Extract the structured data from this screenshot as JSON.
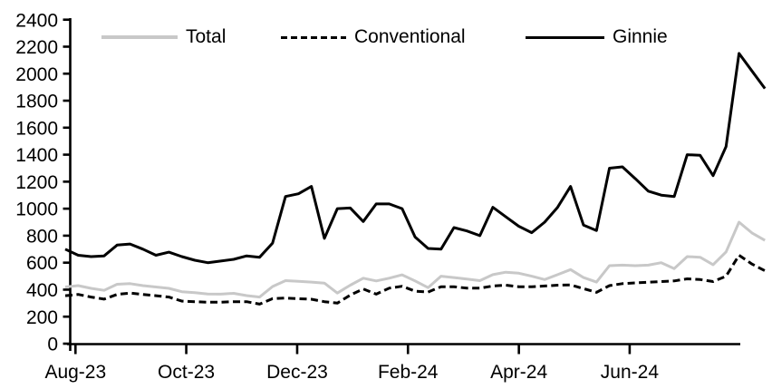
{
  "chart_data": {
    "type": "line",
    "title": "",
    "xlabel": "",
    "ylabel": "",
    "ylim": [
      0,
      2400
    ],
    "y_tick_step": 200,
    "y_tick_labels": [
      "0",
      "200",
      "400",
      "600",
      "800",
      "1000",
      "1200",
      "1400",
      "1600",
      "1800",
      "2000",
      "2200",
      "2400"
    ],
    "x_tick_labels": [
      "Aug-23",
      "Oct-23",
      "Dec-23",
      "Feb-24",
      "Apr-24",
      "Jun-24"
    ],
    "x_tick_index_positions": [
      0.79,
      9.34,
      17.9,
      26.45,
      35.01,
      43.56
    ],
    "n_points": 55,
    "x_unit": "weekly observations, Aug-2023 through Aug-2024",
    "grid": false,
    "legend_position": "top",
    "series": [
      {
        "name": "Total",
        "color": "#c8c8c8",
        "dash": "solid",
        "values": [
          420,
          430,
          410,
          395,
          440,
          445,
          430,
          420,
          410,
          385,
          378,
          368,
          367,
          373,
          356,
          345,
          423,
          467,
          462,
          456,
          449,
          375,
          433,
          485,
          465,
          485,
          510,
          465,
          415,
          500,
          490,
          478,
          467,
          511,
          529,
          522,
          500,
          475,
          511,
          549,
          490,
          456,
          578,
          582,
          578,
          582,
          600,
          556,
          645,
          640,
          585,
          680,
          900,
          820,
          765
        ]
      },
      {
        "name": "Conventional",
        "color": "#000000",
        "dash": "dashed",
        "values": [
          355,
          365,
          345,
          330,
          365,
          375,
          365,
          355,
          345,
          315,
          311,
          307,
          307,
          311,
          311,
          293,
          333,
          338,
          333,
          329,
          311,
          300,
          360,
          405,
          367,
          411,
          425,
          389,
          382,
          422,
          422,
          411,
          411,
          427,
          433,
          422,
          422,
          427,
          433,
          435,
          408,
          380,
          430,
          445,
          450,
          455,
          460,
          465,
          480,
          475,
          460,
          500,
          655,
          590,
          540
        ]
      },
      {
        "name": "Ginnie",
        "color": "#000000",
        "dash": "solid",
        "values": [
          700,
          655,
          645,
          650,
          730,
          738,
          700,
          655,
          678,
          645,
          618,
          600,
          612,
          625,
          650,
          640,
          745,
          1090,
          1110,
          1165,
          780,
          1000,
          1005,
          905,
          1035,
          1035,
          1000,
          790,
          705,
          700,
          860,
          835,
          800,
          1010,
          940,
          870,
          822,
          900,
          1010,
          1165,
          878,
          838,
          1300,
          1310,
          1222,
          1130,
          1100,
          1090,
          1400,
          1395,
          1245,
          1460,
          2150,
          2020,
          1890
        ]
      }
    ]
  }
}
